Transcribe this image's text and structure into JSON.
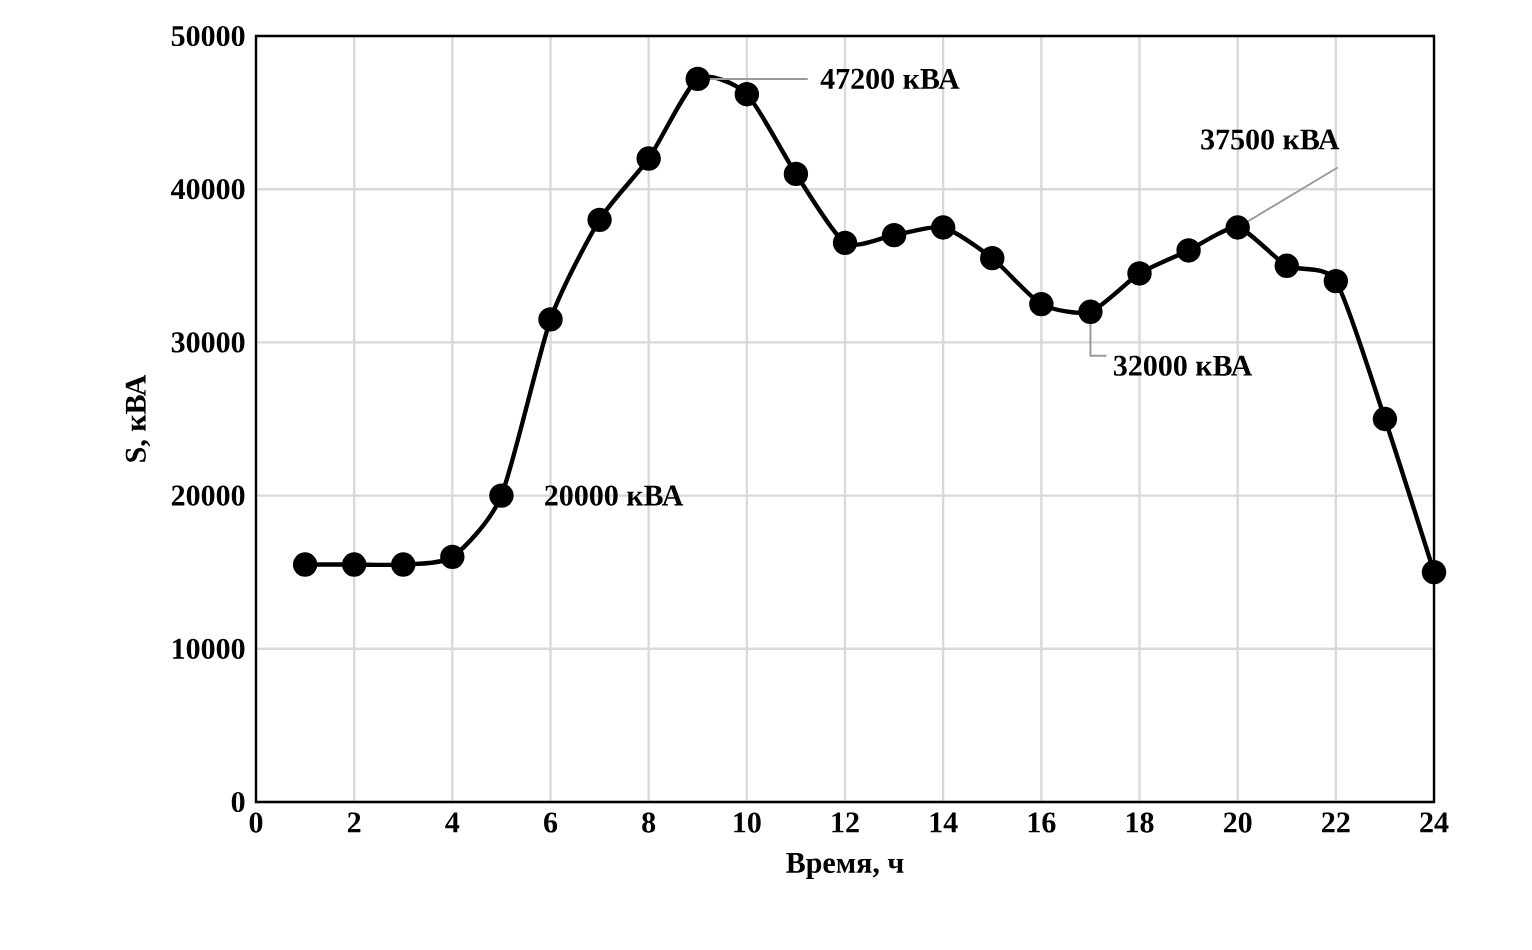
{
  "chart_data": {
    "type": "line",
    "xlabel": "Время, ч",
    "ylabel": "S, кВА",
    "x": [
      1,
      2,
      3,
      4,
      5,
      6,
      7,
      8,
      9,
      10,
      11,
      12,
      13,
      14,
      15,
      16,
      17,
      18,
      19,
      20,
      21,
      22,
      23,
      24
    ],
    "series": [
      {
        "color": "#000000",
        "values": [
          15500,
          15500,
          15500,
          16000,
          20000,
          31500,
          38000,
          42000,
          47200,
          46200,
          41000,
          36500,
          37000,
          37500,
          35500,
          32500,
          32000,
          34500,
          36000,
          37500,
          35000,
          34000,
          25000,
          15000
        ]
      }
    ],
    "xlim": [
      0,
      24
    ],
    "xticks": [
      0,
      2,
      4,
      6,
      8,
      10,
      12,
      14,
      16,
      18,
      20,
      22,
      24
    ],
    "ylim": [
      0,
      50000
    ],
    "yticks": [
      0,
      10000,
      20000,
      30000,
      40000,
      50000
    ],
    "grid": true,
    "marker": "circle",
    "line_style": "solid",
    "annotations": [
      {
        "text": "20000 кВА",
        "x": 5,
        "y": 20000
      },
      {
        "text": "47200 кВА",
        "x": 9,
        "y": 47200
      },
      {
        "text": "32000 кВА",
        "x": 17,
        "y": 32000
      },
      {
        "text": "37500 кВА",
        "x": 20,
        "y": 37500
      }
    ]
  }
}
